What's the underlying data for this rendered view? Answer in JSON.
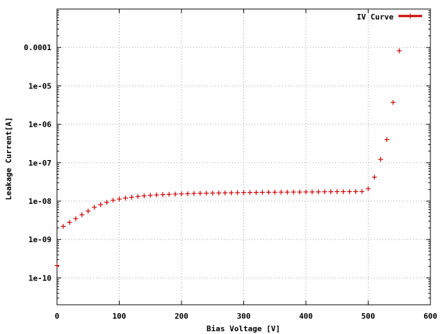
{
  "chart_data": {
    "type": "scatter",
    "title": "",
    "xlabel": "Bias Voltage [V]",
    "ylabel": "Leakage Current[A]",
    "xlim": [
      0,
      600
    ],
    "ylim": [
      2e-11,
      0.001
    ],
    "y_scale": "log",
    "grid": true,
    "legend_position": "top-right",
    "x_ticks": [
      {
        "value": 0,
        "label": "0"
      },
      {
        "value": 100,
        "label": "100"
      },
      {
        "value": 200,
        "label": "200"
      },
      {
        "value": 300,
        "label": "300"
      },
      {
        "value": 400,
        "label": "400"
      },
      {
        "value": 500,
        "label": "500"
      },
      {
        "value": 600,
        "label": "600"
      }
    ],
    "y_ticks": [
      {
        "value": 1e-10,
        "label": "1e-10"
      },
      {
        "value": 1e-09,
        "label": "1e-09"
      },
      {
        "value": 1e-08,
        "label": "1e-08"
      },
      {
        "value": 1e-07,
        "label": "1e-07"
      },
      {
        "value": 1e-06,
        "label": "1e-06"
      },
      {
        "value": 1e-05,
        "label": "1e-05"
      },
      {
        "value": 0.0001,
        "label": "0.0001"
      }
    ],
    "series": [
      {
        "name": "IV Curve",
        "color": "#cc0000",
        "marker": "plus",
        "x": [
          0,
          10,
          20,
          30,
          40,
          50,
          60,
          70,
          80,
          90,
          100,
          110,
          120,
          130,
          140,
          150,
          160,
          170,
          180,
          190,
          200,
          210,
          220,
          230,
          240,
          250,
          260,
          270,
          280,
          290,
          300,
          310,
          320,
          330,
          340,
          350,
          360,
          370,
          380,
          390,
          400,
          410,
          420,
          430,
          440,
          450,
          460,
          470,
          480,
          490,
          500,
          510,
          520,
          530,
          540,
          550
        ],
        "y": [
          2.1e-10,
          2.2e-09,
          2.8e-09,
          3.5e-09,
          4.4e-09,
          5.5e-09,
          6.9e-09,
          8.1e-09,
          9.3e-09,
          1.05e-08,
          1.13e-08,
          1.2e-08,
          1.26e-08,
          1.32e-08,
          1.37e-08,
          1.41e-08,
          1.45e-08,
          1.48e-08,
          1.5e-08,
          1.52e-08,
          1.54e-08,
          1.56e-08,
          1.58e-08,
          1.6e-08,
          1.61e-08,
          1.62e-08,
          1.63e-08,
          1.64e-08,
          1.65e-08,
          1.66e-08,
          1.67e-08,
          1.68e-08,
          1.68e-08,
          1.69e-08,
          1.7e-08,
          1.7e-08,
          1.71e-08,
          1.71e-08,
          1.72e-08,
          1.72e-08,
          1.73e-08,
          1.73e-08,
          1.74e-08,
          1.75e-08,
          1.75e-08,
          1.76e-08,
          1.76e-08,
          1.77e-08,
          1.77e-08,
          1.78e-08,
          2.1e-08,
          4.2e-08,
          1.22e-07,
          4e-07,
          3.7e-06,
          8.2e-05
        ]
      }
    ]
  }
}
